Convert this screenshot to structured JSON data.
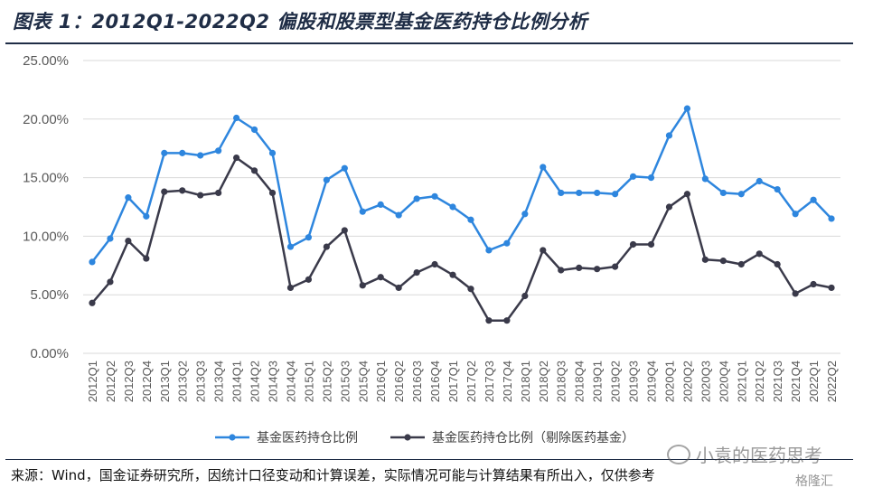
{
  "header": {
    "title": "图表 1：2012Q1-2022Q2 偏股和股票型基金医药持仓比例分析"
  },
  "footer": {
    "source": "来源：Wind，国金证券研究所，因统计口径变动和计算误差，实际情况可能与计算结果有所出入，仅供参考",
    "watermark": "小袁的医药思考",
    "watermark2": "格隆汇"
  },
  "colors": {
    "series1": "#2e86de",
    "series2": "#3a3a4a",
    "grid": "#d9d9d9",
    "axis_text": "#595959"
  },
  "chart_data": {
    "type": "line",
    "title": "",
    "xlabel": "",
    "ylabel": "",
    "ylim": [
      0,
      25
    ],
    "y_ticks": [
      "0.00%",
      "5.00%",
      "10.00%",
      "15.00%",
      "20.00%",
      "25.00%"
    ],
    "grid": "horizontal",
    "legend_position": "bottom",
    "categories": [
      "2012Q1",
      "2012Q2",
      "2012Q3",
      "2012Q4",
      "2013Q1",
      "2013Q2",
      "2013Q3",
      "2013Q4",
      "2014Q1",
      "2014Q2",
      "2014Q3",
      "2014Q4",
      "2015Q1",
      "2015Q2",
      "2015Q3",
      "2015Q4",
      "2016Q1",
      "2016Q2",
      "2016Q3",
      "2016Q4",
      "2017Q1",
      "2017Q2",
      "2017Q3",
      "2017Q4",
      "2018Q1",
      "2018Q2",
      "2018Q3",
      "2018Q4",
      "2019Q1",
      "2019Q2",
      "2019Q3",
      "2019Q4",
      "2020Q1",
      "2020Q2",
      "2020Q3",
      "2020Q4",
      "2021Q1",
      "2021Q2",
      "2021Q3",
      "2021Q4",
      "2022Q1",
      "2022Q2"
    ],
    "series": [
      {
        "name": "基金医药持仓比例",
        "color": "#2e86de",
        "values": [
          7.8,
          9.8,
          13.3,
          11.7,
          17.1,
          17.1,
          16.9,
          17.3,
          20.1,
          19.1,
          17.1,
          9.1,
          9.9,
          14.8,
          15.8,
          12.1,
          12.7,
          11.8,
          13.2,
          13.4,
          12.5,
          11.4,
          8.8,
          9.4,
          11.9,
          15.9,
          13.7,
          13.7,
          13.7,
          13.6,
          15.1,
          15.0,
          18.6,
          20.9,
          14.9,
          13.7,
          13.6,
          14.7,
          14.0,
          11.9,
          13.1,
          11.5
        ]
      },
      {
        "name": "基金医药持仓比例（剔除医药基金）",
        "color": "#3a3a4a",
        "values": [
          4.3,
          6.1,
          9.6,
          8.1,
          13.8,
          13.9,
          13.5,
          13.7,
          16.7,
          15.6,
          13.7,
          5.6,
          6.3,
          9.1,
          10.5,
          5.8,
          6.5,
          5.6,
          6.9,
          7.6,
          6.7,
          5.5,
          2.8,
          2.8,
          4.9,
          8.8,
          7.1,
          7.3,
          7.2,
          7.4,
          9.3,
          9.3,
          12.5,
          13.6,
          8.0,
          7.9,
          7.6,
          8.5,
          7.6,
          5.1,
          5.9,
          5.6
        ]
      }
    ]
  }
}
